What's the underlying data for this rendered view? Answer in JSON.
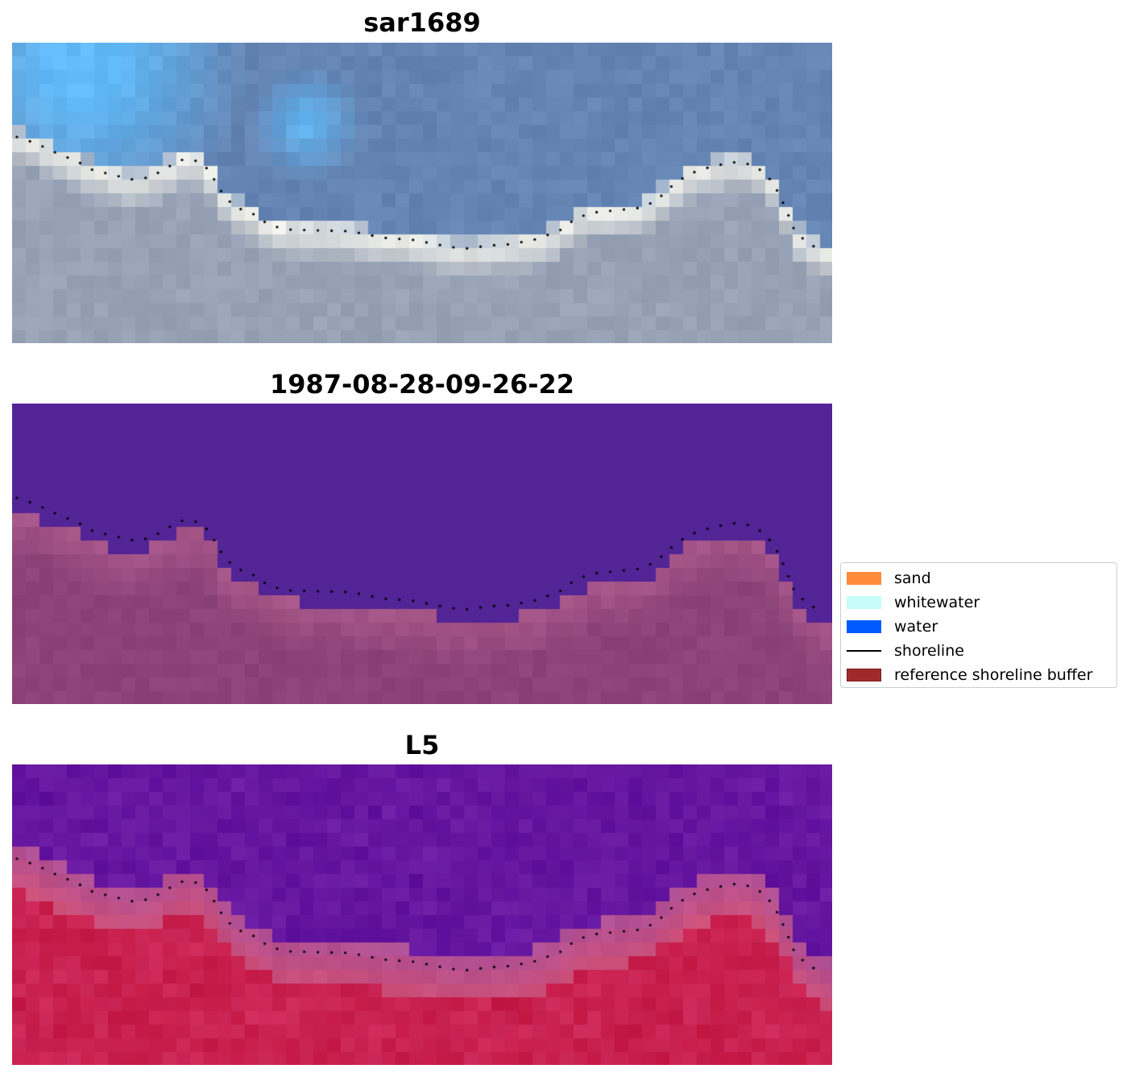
{
  "panels": [
    {
      "title": "sar1689",
      "kind": "rgb"
    },
    {
      "title": "1987-08-28-09-26-22",
      "kind": "classification"
    },
    {
      "title": "L5",
      "kind": "index"
    }
  ],
  "legend": {
    "items": [
      {
        "label": "sand",
        "type": "patch",
        "color": "#ff8c3a"
      },
      {
        "label": "whitewater",
        "type": "patch",
        "color": "#c8fcfa"
      },
      {
        "label": "water",
        "type": "patch",
        "color": "#005bff"
      },
      {
        "label": "shoreline",
        "type": "line",
        "color": "#000000"
      },
      {
        "label": "reference shoreline buffer",
        "type": "patch",
        "color": "#a02a2a",
        "edge": "#7a1c1c"
      }
    ]
  },
  "colors": {
    "rgb_water": "#6485b4",
    "rgb_sky": "#62baf8",
    "rgb_beach": "#f0f0ea",
    "rgb_land": "#98a3b5",
    "class_water": "#522496",
    "class_land": "#8c4378",
    "index_water": "#5e0f9c",
    "index_land": "#c41845",
    "shoreline_dots": "#000000"
  }
}
